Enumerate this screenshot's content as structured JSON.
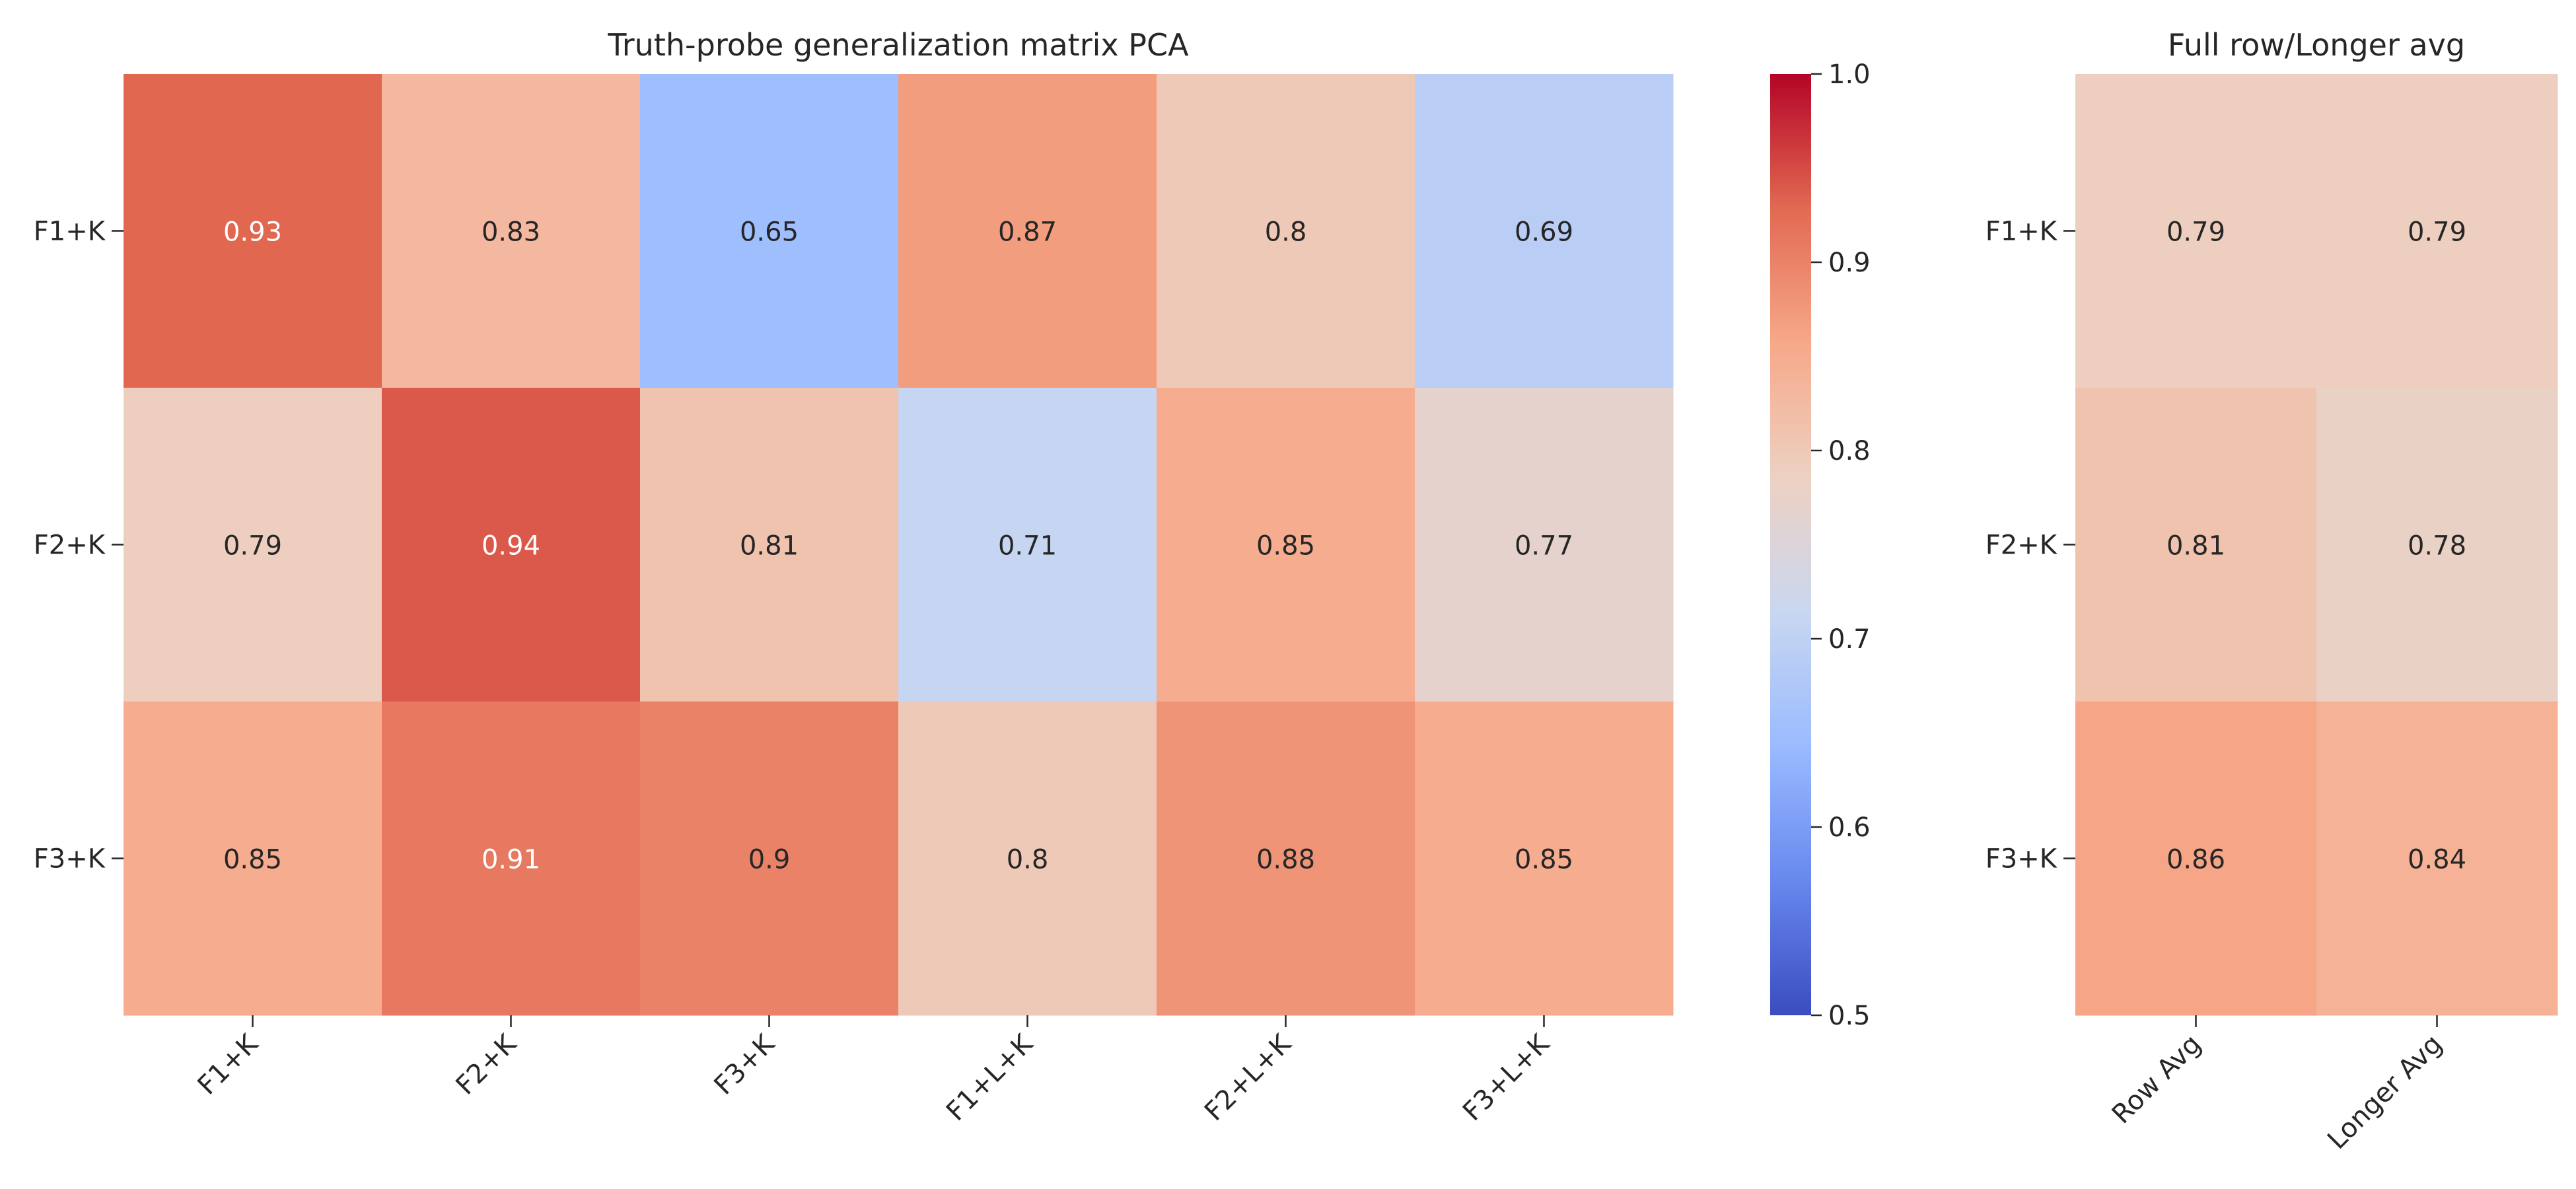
{
  "chart_data": [
    {
      "type": "heatmap",
      "title": "Truth-probe generalization matrix PCA",
      "rows": [
        "F1+K",
        "F2+K",
        "F3+K"
      ],
      "columns": [
        "F1+K",
        "F2+K",
        "F3+K",
        "F1+L+K",
        "F2+L+K",
        "F3+L+K"
      ],
      "values": [
        [
          0.93,
          0.83,
          0.65,
          0.87,
          0.8,
          0.69
        ],
        [
          0.79,
          0.94,
          0.81,
          0.71,
          0.85,
          0.77
        ],
        [
          0.85,
          0.91,
          0.9,
          0.8,
          0.88,
          0.85
        ]
      ],
      "colormap": "coolwarm",
      "vmin": 0.5,
      "vmax": 1.0,
      "colorbar_ticks": [
        "0.5",
        "0.6",
        "0.7",
        "0.8",
        "0.9",
        "1.0"
      ]
    },
    {
      "type": "heatmap",
      "title": "Full row/Longer avg",
      "rows": [
        "F1+K",
        "F2+K",
        "F3+K"
      ],
      "columns": [
        "Row Avg",
        "Longer Avg"
      ],
      "values": [
        [
          0.79,
          0.79
        ],
        [
          0.81,
          0.78
        ],
        [
          0.86,
          0.84
        ]
      ],
      "colormap": "coolwarm",
      "vmin": 0.5,
      "vmax": 1.0
    }
  ],
  "colors": {
    "coolwarm_stops": [
      "#3b4cc0",
      "#6788ee",
      "#9abbff",
      "#c9d7f0",
      "#edd1c2",
      "#f7a889",
      "#e26952",
      "#b40426"
    ],
    "text_dark": "#262626",
    "text_light": "#ffffff"
  }
}
